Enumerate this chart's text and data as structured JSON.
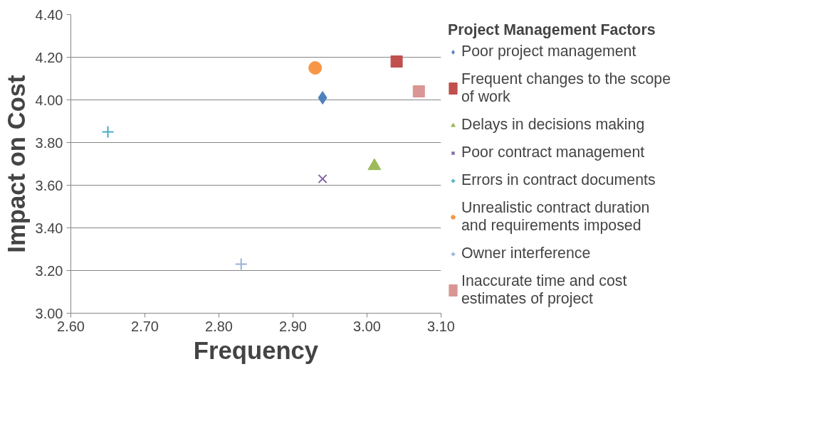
{
  "chart_data": {
    "type": "scatter",
    "xlabel": "Frequency",
    "ylabel": "Impact on Cost",
    "legend_title": "Project Management Factors",
    "legend": "right",
    "grid": "y",
    "xlim": [
      2.6,
      3.1
    ],
    "ylim": [
      3.0,
      4.4
    ],
    "xticks": [
      {
        "value": 2.6,
        "label": "2.60"
      },
      {
        "value": 2.7,
        "label": "2.70"
      },
      {
        "value": 2.8,
        "label": "2.80"
      },
      {
        "value": 2.9,
        "label": "2.90"
      },
      {
        "value": 3.0,
        "label": "3.00"
      },
      {
        "value": 3.1,
        "label": "3.10"
      }
    ],
    "yticks": [
      {
        "value": 3.0,
        "label": "3.00"
      },
      {
        "value": 3.2,
        "label": "3.20"
      },
      {
        "value": 3.4,
        "label": "3.40"
      },
      {
        "value": 3.6,
        "label": "3.60"
      },
      {
        "value": 3.8,
        "label": "3.80"
      },
      {
        "value": 4.0,
        "label": "4.00"
      },
      {
        "value": 4.2,
        "label": "4.20"
      },
      {
        "value": 4.4,
        "label": "4.40"
      }
    ],
    "series": [
      {
        "name": "Poor project management",
        "color": "#4f81bd",
        "marker": "diamond",
        "x": [
          2.94
        ],
        "values": [
          4.01
        ]
      },
      {
        "name": "Frequent changes to the scope of work",
        "color": "#c0504d",
        "marker": "square",
        "x": [
          3.04
        ],
        "values": [
          4.18
        ]
      },
      {
        "name": "Delays in decisions making",
        "color": "#9bbb59",
        "marker": "triangle",
        "x": [
          3.01
        ],
        "values": [
          3.69
        ]
      },
      {
        "name": "Poor contract management",
        "color": "#8064a2",
        "marker": "x",
        "x": [
          2.94
        ],
        "values": [
          3.63
        ]
      },
      {
        "name": "Errors in contract documents",
        "color": "#4bacc6",
        "marker": "cross",
        "x": [
          2.65
        ],
        "values": [
          3.85
        ]
      },
      {
        "name": "Unrealistic contract duration and requirements imposed",
        "color": "#f79646",
        "marker": "circle",
        "x": [
          2.93
        ],
        "values": [
          4.15
        ]
      },
      {
        "name": "Owner interference",
        "color": "#95b3d7",
        "marker": "cross",
        "x": [
          2.83
        ],
        "values": [
          3.23
        ]
      },
      {
        "name": "Inaccurate time and cost estimates of project",
        "color": "#d99694",
        "marker": "square",
        "x": [
          3.07
        ],
        "values": [
          4.04
        ]
      }
    ]
  }
}
